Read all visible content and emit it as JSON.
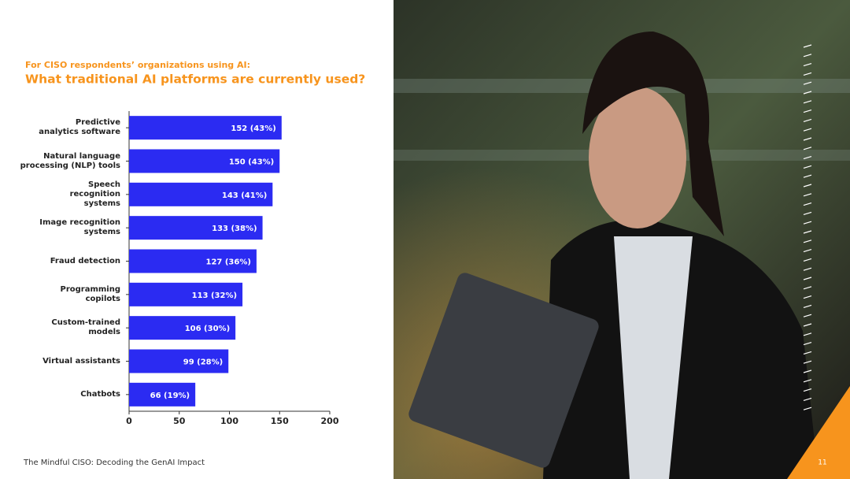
{
  "chart_data": {
    "type": "bar",
    "orientation": "horizontal",
    "title": "For CISO respondents’ organizations using AI:",
    "subtitle": "What traditional AI platforms are currently used?",
    "categories": [
      "Predictive analytics software",
      "Natural language processing (NLP) tools",
      "Speech recognition systems",
      "Image recognition systems",
      "Fraud detection",
      "Programming copilots",
      "Custom-trained models",
      "Virtual assistants",
      "Chatbots"
    ],
    "values": [
      152,
      150,
      143,
      133,
      127,
      113,
      106,
      99,
      66
    ],
    "value_labels": [
      "152 (43%)",
      "150 (43%)",
      "143 (41%)",
      "133 (38%)",
      "127 (36%)",
      "113 (32%)",
      "106 (30%)",
      "99 (28%)",
      "66 (19%)"
    ],
    "color": "#2b2bf2",
    "xlim": [
      0,
      200
    ],
    "xticks": [
      0,
      50,
      100,
      150,
      200
    ]
  },
  "footer": {
    "text": "The Mindful CISO: Decoding the GenAI Impact",
    "page": "11"
  }
}
